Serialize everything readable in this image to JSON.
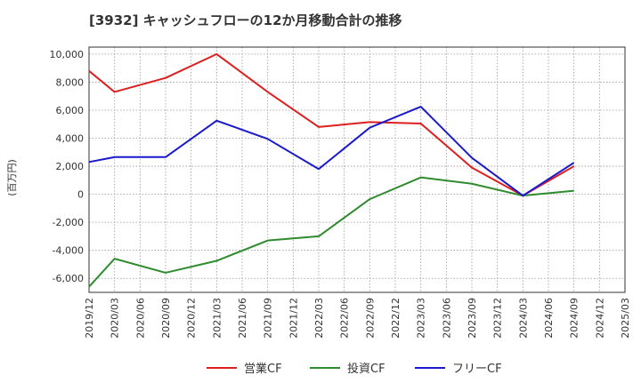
{
  "chart_data": {
    "type": "line",
    "title": "[3932]  キャッシュフローの12か月移動合計の推移",
    "ylabel": "(百万円)",
    "xlabel": "",
    "ylim": [
      -7000,
      10500
    ],
    "yticks": [
      10000,
      8000,
      6000,
      4000,
      2000,
      0,
      -2000,
      -4000,
      -6000
    ],
    "ytick_labels": [
      "10,000",
      "8,000",
      "6,000",
      "4,000",
      "2,000",
      "0",
      "-2,000",
      "-4,000",
      "-6,000"
    ],
    "grid": true,
    "legend_position": "bottom-center",
    "x_categories": [
      "2019/12",
      "2020/03",
      "2020/06",
      "2020/09",
      "2020/12",
      "2021/03",
      "2021/06",
      "2021/09",
      "2021/12",
      "2022/03",
      "2022/06",
      "2022/09",
      "2022/12",
      "2023/03",
      "2023/06",
      "2023/09",
      "2023/12",
      "2024/03",
      "2024/06",
      "2024/09",
      "2024/12",
      "2025/03"
    ],
    "series": [
      {
        "name": "営業CF",
        "color": "#dd1f1f",
        "x": [
          "2019/12",
          "2020/03",
          "2020/09",
          "2021/03",
          "2021/09",
          "2022/03",
          "2022/09",
          "2023/03",
          "2023/09",
          "2024/03",
          "2024/09"
        ],
        "values": [
          8800,
          7300,
          8300,
          10000,
          7300,
          4800,
          5150,
          5050,
          1900,
          -100,
          2000
        ]
      },
      {
        "name": "投資CF",
        "color": "#2e8b2e",
        "x": [
          "2019/12",
          "2020/03",
          "2020/09",
          "2021/03",
          "2021/09",
          "2022/03",
          "2022/09",
          "2023/03",
          "2023/09",
          "2024/03",
          "2024/09"
        ],
        "values": [
          -6600,
          -4600,
          -5600,
          -4750,
          -3300,
          -3000,
          -350,
          1200,
          750,
          -100,
          250
        ]
      },
      {
        "name": "フリーCF",
        "color": "#1a1acc",
        "x": [
          "2019/12",
          "2020/03",
          "2020/09",
          "2021/03",
          "2021/09",
          "2022/03",
          "2022/09",
          "2023/03",
          "2023/09",
          "2024/03",
          "2024/09"
        ],
        "values": [
          2300,
          2650,
          2650,
          5250,
          3950,
          1800,
          4750,
          6250,
          2600,
          -100,
          2250
        ]
      }
    ]
  }
}
